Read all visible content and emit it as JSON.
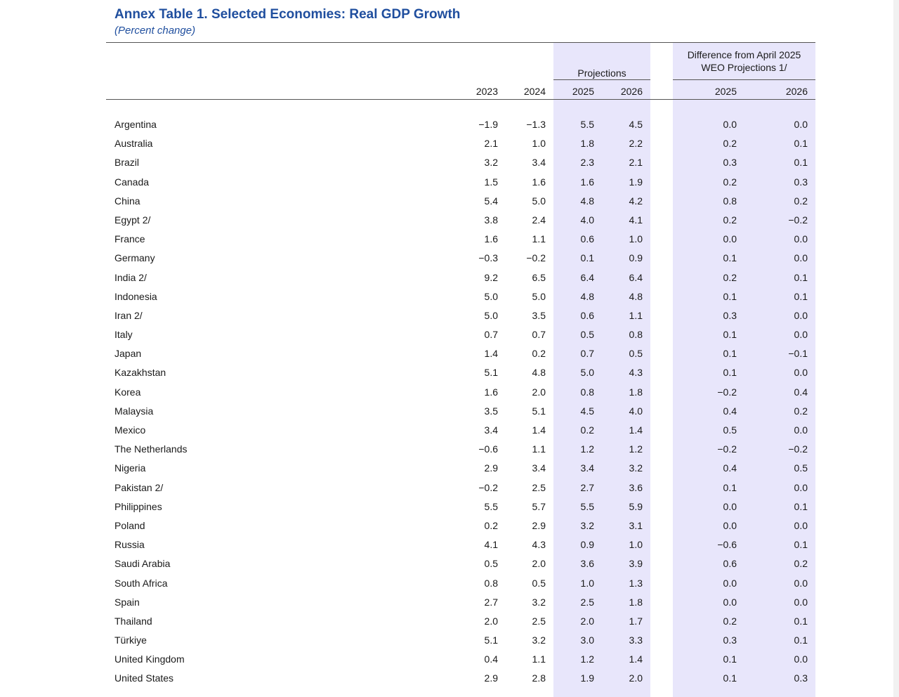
{
  "title": "Annex Table 1. Selected Economies: Real GDP Growth",
  "subtitle": "(Percent change)",
  "header": {
    "projections_label": "Projections",
    "difference_label_line1": "Difference from April 2025",
    "difference_label_line2": "WEO Projections 1/",
    "years": [
      "2023",
      "2024",
      "2025",
      "2026",
      "2025",
      "2026"
    ]
  },
  "accent_color": "#1f4e9e",
  "band_color": "#e8e6fb",
  "rows": [
    {
      "country": "Argentina",
      "v2023": "−1.9",
      "v2024": "−1.3",
      "p2025": "5.5",
      "p2026": "4.5",
      "d2025": "0.0",
      "d2026": "0.0"
    },
    {
      "country": "Australia",
      "v2023": "2.1",
      "v2024": "1.0",
      "p2025": "1.8",
      "p2026": "2.2",
      "d2025": "0.2",
      "d2026": "0.1"
    },
    {
      "country": "Brazil",
      "v2023": "3.2",
      "v2024": "3.4",
      "p2025": "2.3",
      "p2026": "2.1",
      "d2025": "0.3",
      "d2026": "0.1"
    },
    {
      "country": "Canada",
      "v2023": "1.5",
      "v2024": "1.6",
      "p2025": "1.6",
      "p2026": "1.9",
      "d2025": "0.2",
      "d2026": "0.3"
    },
    {
      "country": "China",
      "v2023": "5.4",
      "v2024": "5.0",
      "p2025": "4.8",
      "p2026": "4.2",
      "d2025": "0.8",
      "d2026": "0.2"
    },
    {
      "country": "Egypt 2/",
      "v2023": "3.8",
      "v2024": "2.4",
      "p2025": "4.0",
      "p2026": "4.1",
      "d2025": "0.2",
      "d2026": "−0.2"
    },
    {
      "country": "France",
      "v2023": "1.6",
      "v2024": "1.1",
      "p2025": "0.6",
      "p2026": "1.0",
      "d2025": "0.0",
      "d2026": "0.0"
    },
    {
      "country": "Germany",
      "v2023": "−0.3",
      "v2024": "−0.2",
      "p2025": "0.1",
      "p2026": "0.9",
      "d2025": "0.1",
      "d2026": "0.0"
    },
    {
      "country": "India 2/",
      "v2023": "9.2",
      "v2024": "6.5",
      "p2025": "6.4",
      "p2026": "6.4",
      "d2025": "0.2",
      "d2026": "0.1"
    },
    {
      "country": "Indonesia",
      "v2023": "5.0",
      "v2024": "5.0",
      "p2025": "4.8",
      "p2026": "4.8",
      "d2025": "0.1",
      "d2026": "0.1"
    },
    {
      "country": "Iran 2/",
      "v2023": "5.0",
      "v2024": "3.5",
      "p2025": "0.6",
      "p2026": "1.1",
      "d2025": "0.3",
      "d2026": "0.0"
    },
    {
      "country": "Italy",
      "v2023": "0.7",
      "v2024": "0.7",
      "p2025": "0.5",
      "p2026": "0.8",
      "d2025": "0.1",
      "d2026": "0.0"
    },
    {
      "country": "Japan",
      "v2023": "1.4",
      "v2024": "0.2",
      "p2025": "0.7",
      "p2026": "0.5",
      "d2025": "0.1",
      "d2026": "−0.1"
    },
    {
      "country": "Kazakhstan",
      "v2023": "5.1",
      "v2024": "4.8",
      "p2025": "5.0",
      "p2026": "4.3",
      "d2025": "0.1",
      "d2026": "0.0"
    },
    {
      "country": "Korea",
      "v2023": "1.6",
      "v2024": "2.0",
      "p2025": "0.8",
      "p2026": "1.8",
      "d2025": "−0.2",
      "d2026": "0.4"
    },
    {
      "country": "Malaysia",
      "v2023": "3.5",
      "v2024": "5.1",
      "p2025": "4.5",
      "p2026": "4.0",
      "d2025": "0.4",
      "d2026": "0.2"
    },
    {
      "country": "Mexico",
      "v2023": "3.4",
      "v2024": "1.4",
      "p2025": "0.2",
      "p2026": "1.4",
      "d2025": "0.5",
      "d2026": "0.0"
    },
    {
      "country": "The Netherlands",
      "v2023": "−0.6",
      "v2024": "1.1",
      "p2025": "1.2",
      "p2026": "1.2",
      "d2025": "−0.2",
      "d2026": "−0.2"
    },
    {
      "country": "Nigeria",
      "v2023": "2.9",
      "v2024": "3.4",
      "p2025": "3.4",
      "p2026": "3.2",
      "d2025": "0.4",
      "d2026": "0.5"
    },
    {
      "country": "Pakistan 2/",
      "v2023": "−0.2",
      "v2024": "2.5",
      "p2025": "2.7",
      "p2026": "3.6",
      "d2025": "0.1",
      "d2026": "0.0"
    },
    {
      "country": "Philippines",
      "v2023": "5.5",
      "v2024": "5.7",
      "p2025": "5.5",
      "p2026": "5.9",
      "d2025": "0.0",
      "d2026": "0.1"
    },
    {
      "country": "Poland",
      "v2023": "0.2",
      "v2024": "2.9",
      "p2025": "3.2",
      "p2026": "3.1",
      "d2025": "0.0",
      "d2026": "0.0"
    },
    {
      "country": "Russia",
      "v2023": "4.1",
      "v2024": "4.3",
      "p2025": "0.9",
      "p2026": "1.0",
      "d2025": "−0.6",
      "d2026": "0.1"
    },
    {
      "country": "Saudi Arabia",
      "v2023": "0.5",
      "v2024": "2.0",
      "p2025": "3.6",
      "p2026": "3.9",
      "d2025": "0.6",
      "d2026": "0.2"
    },
    {
      "country": "South Africa",
      "v2023": "0.8",
      "v2024": "0.5",
      "p2025": "1.0",
      "p2026": "1.3",
      "d2025": "0.0",
      "d2026": "0.0"
    },
    {
      "country": "Spain",
      "v2023": "2.7",
      "v2024": "3.2",
      "p2025": "2.5",
      "p2026": "1.8",
      "d2025": "0.0",
      "d2026": "0.0"
    },
    {
      "country": "Thailand",
      "v2023": "2.0",
      "v2024": "2.5",
      "p2025": "2.0",
      "p2026": "1.7",
      "d2025": "0.2",
      "d2026": "0.1"
    },
    {
      "country": "Türkiye",
      "v2023": "5.1",
      "v2024": "3.2",
      "p2025": "3.0",
      "p2026": "3.3",
      "d2025": "0.3",
      "d2026": "0.1"
    },
    {
      "country": "United Kingdom",
      "v2023": "0.4",
      "v2024": "1.1",
      "p2025": "1.2",
      "p2026": "1.4",
      "d2025": "0.1",
      "d2026": "0.0"
    },
    {
      "country": "United States",
      "v2023": "2.9",
      "v2024": "2.8",
      "p2025": "1.9",
      "p2026": "2.0",
      "d2025": "0.1",
      "d2026": "0.3"
    }
  ]
}
